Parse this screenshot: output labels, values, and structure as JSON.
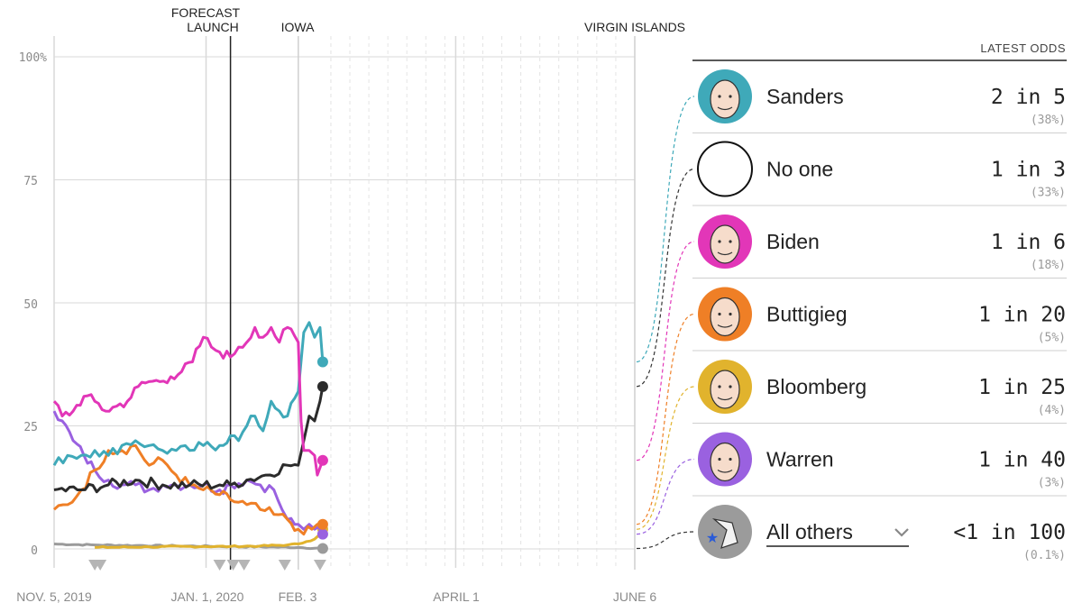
{
  "colors": {
    "sanders": "#3fa9b9",
    "no_one": "#2b2b2b",
    "biden": "#e236b8",
    "buttigieg": "#ef7f26",
    "bloomberg": "#e1b32d",
    "warren": "#9a61e0",
    "others": "#9b9b9b",
    "grid": "#d9d9d9",
    "axis": "#bbbbbb"
  },
  "chart_data": {
    "type": "line",
    "ylim": [
      0,
      100
    ],
    "y_ticks": [
      "100%",
      "75",
      "50",
      "25",
      "0"
    ],
    "x_ticks": [
      "NOV. 5, 2019",
      "JAN. 1, 2020",
      "FEB. 3",
      "APRIL 1",
      "JUNE 6"
    ],
    "x_domain": [
      "2019-11-05",
      "2020-06-06"
    ],
    "last_data_date": "2020-02-12",
    "events": [
      {
        "label_line1": "FORECAST",
        "label_line2": "LAUNCH",
        "date": "2020-01-09"
      },
      {
        "label_line1": "IOWA",
        "label_line2": "",
        "date": "2020-02-03"
      },
      {
        "label_line1": "VIRGIN ISLANDS",
        "label_line2": "",
        "date": "2020-06-06"
      }
    ],
    "series": [
      {
        "name": "Sanders",
        "key": "sanders",
        "final": 38,
        "points": [
          [
            "2019-11-05",
            17
          ],
          [
            "2019-11-10",
            19
          ],
          [
            "2019-11-15",
            19
          ],
          [
            "2019-11-20",
            20
          ],
          [
            "2019-11-25",
            19
          ],
          [
            "2019-11-30",
            21
          ],
          [
            "2019-12-05",
            22
          ],
          [
            "2019-12-10",
            21
          ],
          [
            "2019-12-15",
            20
          ],
          [
            "2019-12-20",
            20
          ],
          [
            "2019-12-25",
            20
          ],
          [
            "2019-12-30",
            21
          ],
          [
            "2020-01-05",
            21
          ],
          [
            "2020-01-09",
            23
          ],
          [
            "2020-01-12",
            22
          ],
          [
            "2020-01-15",
            25
          ],
          [
            "2020-01-18",
            27
          ],
          [
            "2020-01-21",
            24
          ],
          [
            "2020-01-24",
            30
          ],
          [
            "2020-01-27",
            28
          ],
          [
            "2020-01-30",
            27
          ],
          [
            "2020-02-03",
            32
          ],
          [
            "2020-02-05",
            44
          ],
          [
            "2020-02-07",
            46
          ],
          [
            "2020-02-09",
            43
          ],
          [
            "2020-02-11",
            45
          ],
          [
            "2020-02-12",
            38
          ]
        ]
      },
      {
        "name": "No one",
        "key": "no_one",
        "final": 33,
        "points": [
          [
            "2019-11-05",
            12
          ],
          [
            "2019-11-15",
            12
          ],
          [
            "2019-11-25",
            13
          ],
          [
            "2019-12-05",
            14
          ],
          [
            "2019-12-15",
            13
          ],
          [
            "2019-12-25",
            13
          ],
          [
            "2020-01-05",
            13
          ],
          [
            "2020-01-09",
            13
          ],
          [
            "2020-01-15",
            14
          ],
          [
            "2020-01-22",
            15
          ],
          [
            "2020-01-30",
            17
          ],
          [
            "2020-02-03",
            17
          ],
          [
            "2020-02-05",
            22
          ],
          [
            "2020-02-07",
            27
          ],
          [
            "2020-02-09",
            26
          ],
          [
            "2020-02-11",
            30
          ],
          [
            "2020-02-12",
            33
          ]
        ]
      },
      {
        "name": "Biden",
        "key": "biden",
        "final": 18,
        "points": [
          [
            "2019-11-05",
            30
          ],
          [
            "2019-11-08",
            27
          ],
          [
            "2019-11-12",
            28
          ],
          [
            "2019-11-16",
            31
          ],
          [
            "2019-11-20",
            30
          ],
          [
            "2019-11-24",
            28
          ],
          [
            "2019-11-28",
            29
          ],
          [
            "2019-12-02",
            30
          ],
          [
            "2019-12-06",
            33
          ],
          [
            "2019-12-10",
            34
          ],
          [
            "2019-12-14",
            34
          ],
          [
            "2019-12-18",
            35
          ],
          [
            "2019-12-22",
            36
          ],
          [
            "2019-12-26",
            38
          ],
          [
            "2019-12-30",
            43
          ],
          [
            "2020-01-02",
            41
          ],
          [
            "2020-01-05",
            40
          ],
          [
            "2020-01-09",
            39
          ],
          [
            "2020-01-12",
            41
          ],
          [
            "2020-01-15",
            42
          ],
          [
            "2020-01-18",
            45
          ],
          [
            "2020-01-21",
            43
          ],
          [
            "2020-01-24",
            45
          ],
          [
            "2020-01-27",
            42
          ],
          [
            "2020-01-30",
            45
          ],
          [
            "2020-02-03",
            42
          ],
          [
            "2020-02-04",
            26
          ],
          [
            "2020-02-05",
            20
          ],
          [
            "2020-02-07",
            20
          ],
          [
            "2020-02-09",
            19
          ],
          [
            "2020-02-10",
            15
          ],
          [
            "2020-02-12",
            18
          ]
        ]
      },
      {
        "name": "Buttigieg",
        "key": "buttigieg",
        "final": 5,
        "points": [
          [
            "2019-11-05",
            8
          ],
          [
            "2019-11-10",
            9
          ],
          [
            "2019-11-15",
            12
          ],
          [
            "2019-11-20",
            16
          ],
          [
            "2019-11-25",
            20
          ],
          [
            "2019-11-30",
            20
          ],
          [
            "2019-12-05",
            21
          ],
          [
            "2019-12-10",
            17
          ],
          [
            "2019-12-15",
            18
          ],
          [
            "2019-12-20",
            15
          ],
          [
            "2019-12-25",
            13
          ],
          [
            "2019-12-30",
            12
          ],
          [
            "2020-01-05",
            11
          ],
          [
            "2020-01-09",
            10
          ],
          [
            "2020-01-15",
            9
          ],
          [
            "2020-01-20",
            8
          ],
          [
            "2020-01-25",
            7
          ],
          [
            "2020-01-30",
            6
          ],
          [
            "2020-02-03",
            4
          ],
          [
            "2020-02-05",
            3
          ],
          [
            "2020-02-08",
            4
          ],
          [
            "2020-02-10",
            5
          ],
          [
            "2020-02-12",
            5
          ]
        ]
      },
      {
        "name": "Bloomberg",
        "key": "bloomberg",
        "final": 4,
        "points": [
          [
            "2019-11-20",
            0.3
          ],
          [
            "2019-12-10",
            0.4
          ],
          [
            "2019-12-30",
            0.5
          ],
          [
            "2020-01-09",
            0.5
          ],
          [
            "2020-01-20",
            0.6
          ],
          [
            "2020-01-30",
            0.8
          ],
          [
            "2020-02-03",
            1
          ],
          [
            "2020-02-06",
            1.5
          ],
          [
            "2020-02-09",
            2
          ],
          [
            "2020-02-11",
            3
          ],
          [
            "2020-02-12",
            4
          ]
        ]
      },
      {
        "name": "Warren",
        "key": "warren",
        "final": 3,
        "points": [
          [
            "2019-11-05",
            28
          ],
          [
            "2019-11-08",
            26
          ],
          [
            "2019-11-12",
            22
          ],
          [
            "2019-11-16",
            19
          ],
          [
            "2019-11-20",
            16
          ],
          [
            "2019-11-25",
            14
          ],
          [
            "2019-11-30",
            13
          ],
          [
            "2019-12-05",
            13
          ],
          [
            "2019-12-10",
            12
          ],
          [
            "2019-12-15",
            13
          ],
          [
            "2019-12-20",
            13
          ],
          [
            "2019-12-25",
            13
          ],
          [
            "2019-12-30",
            13
          ],
          [
            "2020-01-05",
            12
          ],
          [
            "2020-01-09",
            13
          ],
          [
            "2020-01-15",
            14
          ],
          [
            "2020-01-20",
            13
          ],
          [
            "2020-01-25",
            12
          ],
          [
            "2020-01-28",
            8
          ],
          [
            "2020-01-30",
            6
          ],
          [
            "2020-02-03",
            5
          ],
          [
            "2020-02-05",
            4
          ],
          [
            "2020-02-07",
            5
          ],
          [
            "2020-02-09",
            4
          ],
          [
            "2020-02-12",
            3
          ]
        ]
      },
      {
        "name": "All others",
        "key": "others",
        "final": 0.1,
        "points": [
          [
            "2019-11-05",
            1
          ],
          [
            "2019-11-20",
            0.8
          ],
          [
            "2019-12-05",
            0.7
          ],
          [
            "2019-12-20",
            0.6
          ],
          [
            "2020-01-09",
            0.5
          ],
          [
            "2020-01-25",
            0.4
          ],
          [
            "2020-02-03",
            0.3
          ],
          [
            "2020-02-12",
            0.1
          ]
        ]
      }
    ],
    "markers": [
      "2019-11-20",
      "2019-11-22",
      "2020-01-05",
      "2020-01-10",
      "2020-01-14",
      "2020-01-29",
      "2020-02-11"
    ]
  },
  "legend": {
    "header": "LATEST ODDS",
    "rows": [
      {
        "key": "sanders",
        "name": "Sanders",
        "odds": "2 in 5",
        "pct": "(38%)"
      },
      {
        "key": "no_one",
        "name": "No one",
        "odds": "1 in 3",
        "pct": "(33%)"
      },
      {
        "key": "biden",
        "name": "Biden",
        "odds": "1 in 6",
        "pct": "(18%)"
      },
      {
        "key": "buttigieg",
        "name": "Buttigieg",
        "odds": "1 in 20",
        "pct": "(5%)"
      },
      {
        "key": "bloomberg",
        "name": "Bloomberg",
        "odds": "1 in 25",
        "pct": "(4%)"
      },
      {
        "key": "warren",
        "name": "Warren",
        "odds": "1 in 40",
        "pct": "(3%)"
      },
      {
        "key": "others",
        "name": "All others",
        "odds": "<1 in 100",
        "pct": "(0.1%)"
      }
    ]
  },
  "icons": {
    "dropdown": "chevron-down-icon",
    "others_avatar": "donkey-icon"
  }
}
